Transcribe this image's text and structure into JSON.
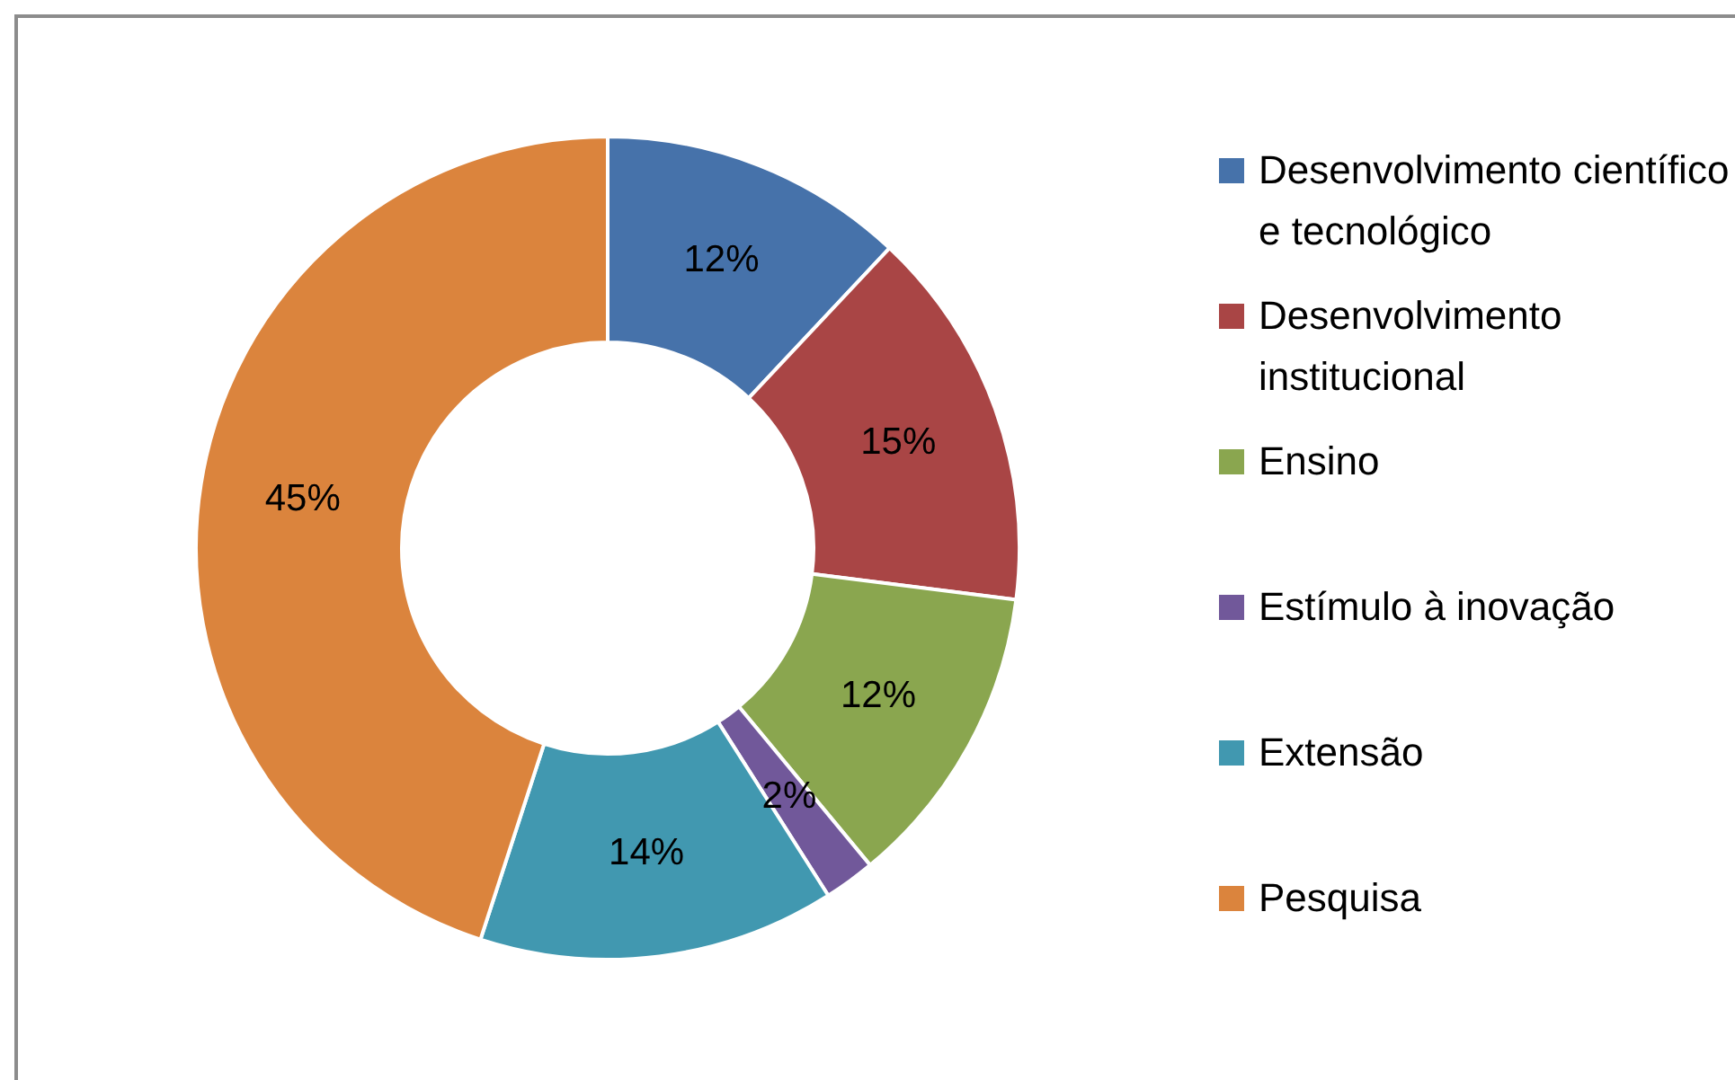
{
  "chart_data": {
    "type": "donut",
    "categories": [
      "Desenvolvimento científico e tecnológico",
      "Desenvolvimento institucional",
      "Ensino",
      "Estímulo à inovação",
      "Extensão",
      "Pesquisa"
    ],
    "values": [
      12,
      15,
      12,
      2,
      14,
      45
    ],
    "value_labels": [
      "12%",
      "15%",
      "12%",
      "2%",
      "14%",
      "45%"
    ],
    "colors": [
      "#4672aa",
      "#a94545",
      "#8aa64f",
      "#71589a",
      "#4198b0",
      "#db843d"
    ],
    "legend": "right"
  }
}
